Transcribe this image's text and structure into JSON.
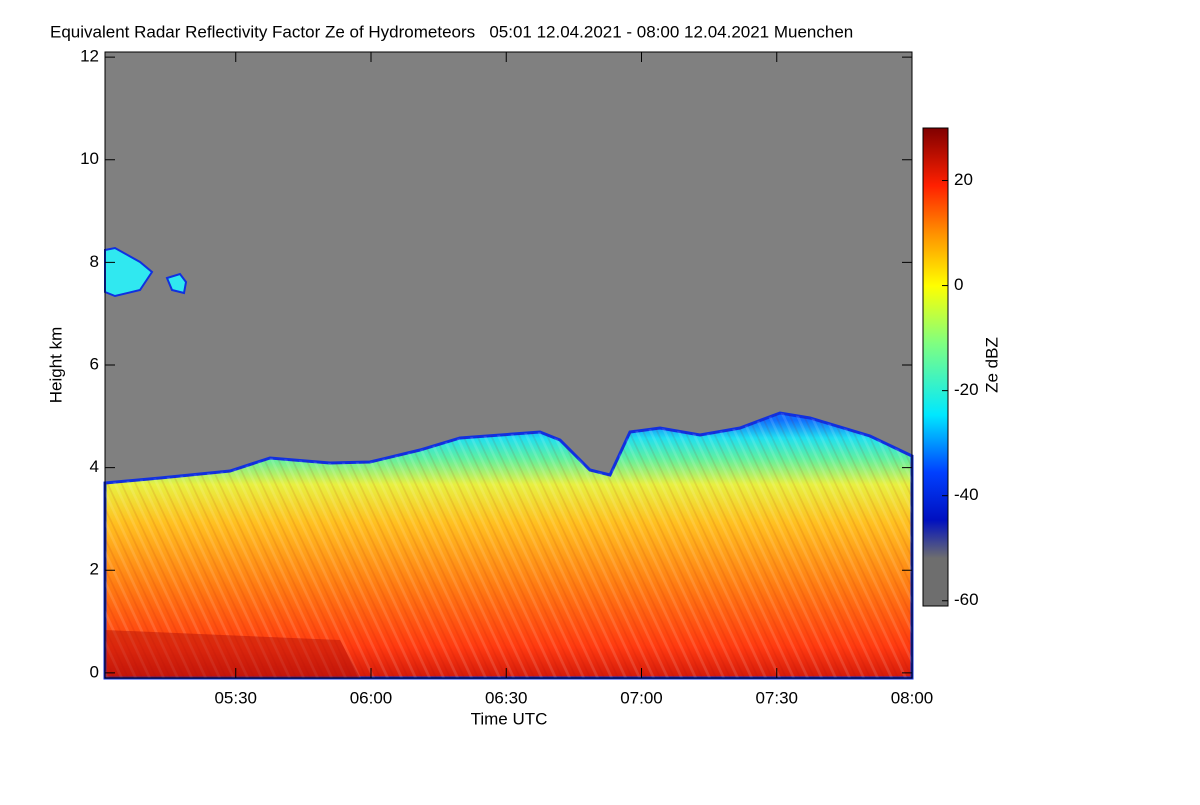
{
  "chart_data": {
    "type": "heatmap",
    "title": "Equivalent Radar Reflectivity Factor Ze of Hydrometeors   05:01 12.04.2021 - 08:00 12.04.2021 Muenchen",
    "xlabel": "Time UTC",
    "ylabel": "Height km",
    "xlim": [
      301,
      480
    ],
    "xticks": [
      {
        "value": 330,
        "label": "05:30"
      },
      {
        "value": 360,
        "label": "06:00"
      },
      {
        "value": 390,
        "label": "06:30"
      },
      {
        "value": 420,
        "label": "07:00"
      },
      {
        "value": 450,
        "label": "07:30"
      },
      {
        "value": 480,
        "label": "08:00"
      }
    ],
    "ylim": [
      -0.1,
      12.1
    ],
    "yticks": [
      0,
      2,
      4,
      6,
      8,
      10,
      12
    ],
    "colorbar": {
      "label": "Ze dBZ",
      "lim": [
        -61,
        30
      ],
      "ticks": [
        -60,
        -40,
        -20,
        0,
        20
      ]
    }
  }
}
